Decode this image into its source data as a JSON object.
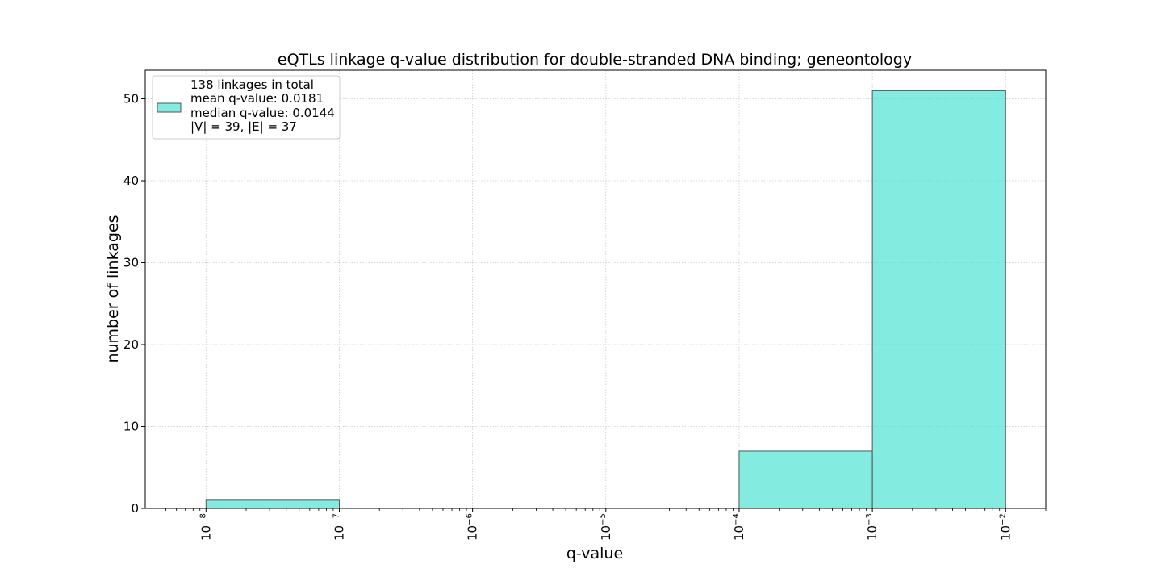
{
  "chart_data": {
    "type": "bar",
    "title": "eQTLs linkage q-value distribution for double-stranded DNA binding; geneontology",
    "xlabel": "q-value",
    "ylabel": "number of linkages",
    "x_scale": "log",
    "xlim": [
      3.5e-09,
      0.02
    ],
    "ylim": [
      0,
      53.5
    ],
    "grid": true,
    "bin_edges": [
      1e-08,
      1e-07,
      1e-06,
      1e-05,
      0.0001,
      0.001,
      0.01
    ],
    "values": [
      1,
      0,
      0,
      0,
      7,
      51
    ],
    "x_ticks": [
      {
        "value": 1e-08,
        "base": "10",
        "exp": "−8"
      },
      {
        "value": 1e-07,
        "base": "10",
        "exp": "−7"
      },
      {
        "value": 1e-06,
        "base": "10",
        "exp": "−6"
      },
      {
        "value": 1e-05,
        "base": "10",
        "exp": "−5"
      },
      {
        "value": 0.0001,
        "base": "10",
        "exp": "−4"
      },
      {
        "value": 0.001,
        "base": "10",
        "exp": "−3"
      },
      {
        "value": 0.01,
        "base": "10",
        "exp": "−2"
      }
    ],
    "y_ticks": [
      0,
      10,
      20,
      30,
      40,
      50
    ],
    "bar_color": "#40e0d0",
    "bar_edge_color": "#555555",
    "legend": {
      "placement": "top-left",
      "lines": [
        "138 linkages in total",
        "mean q-value: 0.0181",
        "median q-value: 0.0144",
        "|V| = 39, |E| = 37"
      ]
    }
  }
}
